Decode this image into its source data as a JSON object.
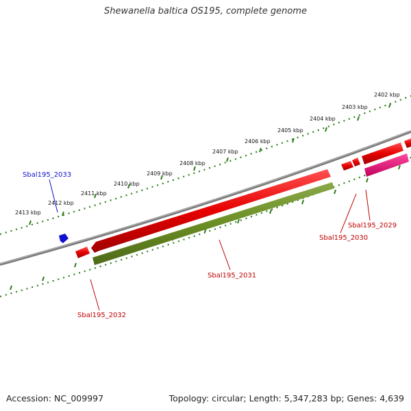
{
  "title": "Shewanella baltica OS195, complete genome",
  "footer": {
    "accession": "Accession: NC_009997",
    "summary": "Topology: circular; Length: 5,347,283 bp; Genes: 4,639"
  },
  "ticks": [
    "2402 kbp",
    "2403 kbp",
    "2404 kbp",
    "2405 kbp",
    "2406 kbp",
    "2407 kbp",
    "2408 kbp",
    "2409 kbp",
    "2410 kbp",
    "2411 kbp",
    "2412 kbp",
    "2413 kbp"
  ],
  "genes": {
    "g2033": "Sbal195_2033",
    "g2032": "Sbal195_2032",
    "g2031": "Sbal195_2031",
    "g2030": "Sbal195_2030",
    "g2029": "Sbal195_2029"
  },
  "colors": {
    "forward_gene": "#e00000",
    "reverse_gene": "#6b8e23",
    "pink_gene": "#e0006e",
    "blue_gene": "#1010d0",
    "tick_green": "#2e7d1a",
    "backbone": "#888888"
  }
}
